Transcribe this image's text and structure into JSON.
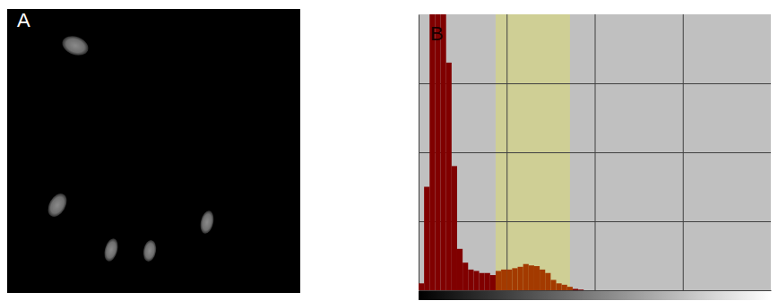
{
  "chart_data": [
    {
      "type": "image",
      "panel_label": "A"
    },
    {
      "type": "histogram",
      "panel_label": "B",
      "color": "#800000",
      "bins": [
        0,
        4,
        8,
        12,
        16,
        20,
        24,
        28,
        32,
        36,
        40,
        44,
        48,
        52,
        56,
        60,
        64,
        68,
        72,
        76,
        80,
        84,
        88,
        92,
        96,
        100,
        104,
        108,
        112,
        116,
        120,
        124,
        128,
        132,
        136,
        140,
        144,
        148,
        152,
        156,
        160,
        164,
        168,
        172,
        176,
        180,
        184,
        188,
        192,
        196,
        200,
        204,
        208,
        212,
        216,
        220,
        224,
        228,
        232,
        236,
        240,
        244,
        248,
        252,
        256
      ],
      "counts": [
        0.1,
        1.5,
        4.2,
        4.2,
        4.2,
        3.3,
        1.8,
        0.6,
        0.4,
        0.3,
        0.28,
        0.25,
        0.25,
        0.22,
        0.28,
        0.3,
        0.3,
        0.32,
        0.34,
        0.38,
        0.36,
        0.35,
        0.3,
        0.25,
        0.15,
        0.1,
        0.08,
        0.05,
        0.02,
        0.01,
        0,
        0,
        0,
        0,
        0,
        0,
        0,
        0,
        0,
        0,
        0,
        0,
        0,
        0,
        0,
        0,
        0,
        0,
        0,
        0,
        0,
        0,
        0,
        0,
        0,
        0,
        0,
        0,
        0,
        0,
        0,
        0,
        0,
        0
      ],
      "threshold_range": [
        56,
        110
      ],
      "xlim": [
        0,
        256
      ],
      "xticks": [
        64,
        128,
        192
      ],
      "ylim": [
        0,
        4
      ],
      "yticks": [
        1,
        2,
        3
      ],
      "grid": true,
      "tick_labels": false
    }
  ]
}
